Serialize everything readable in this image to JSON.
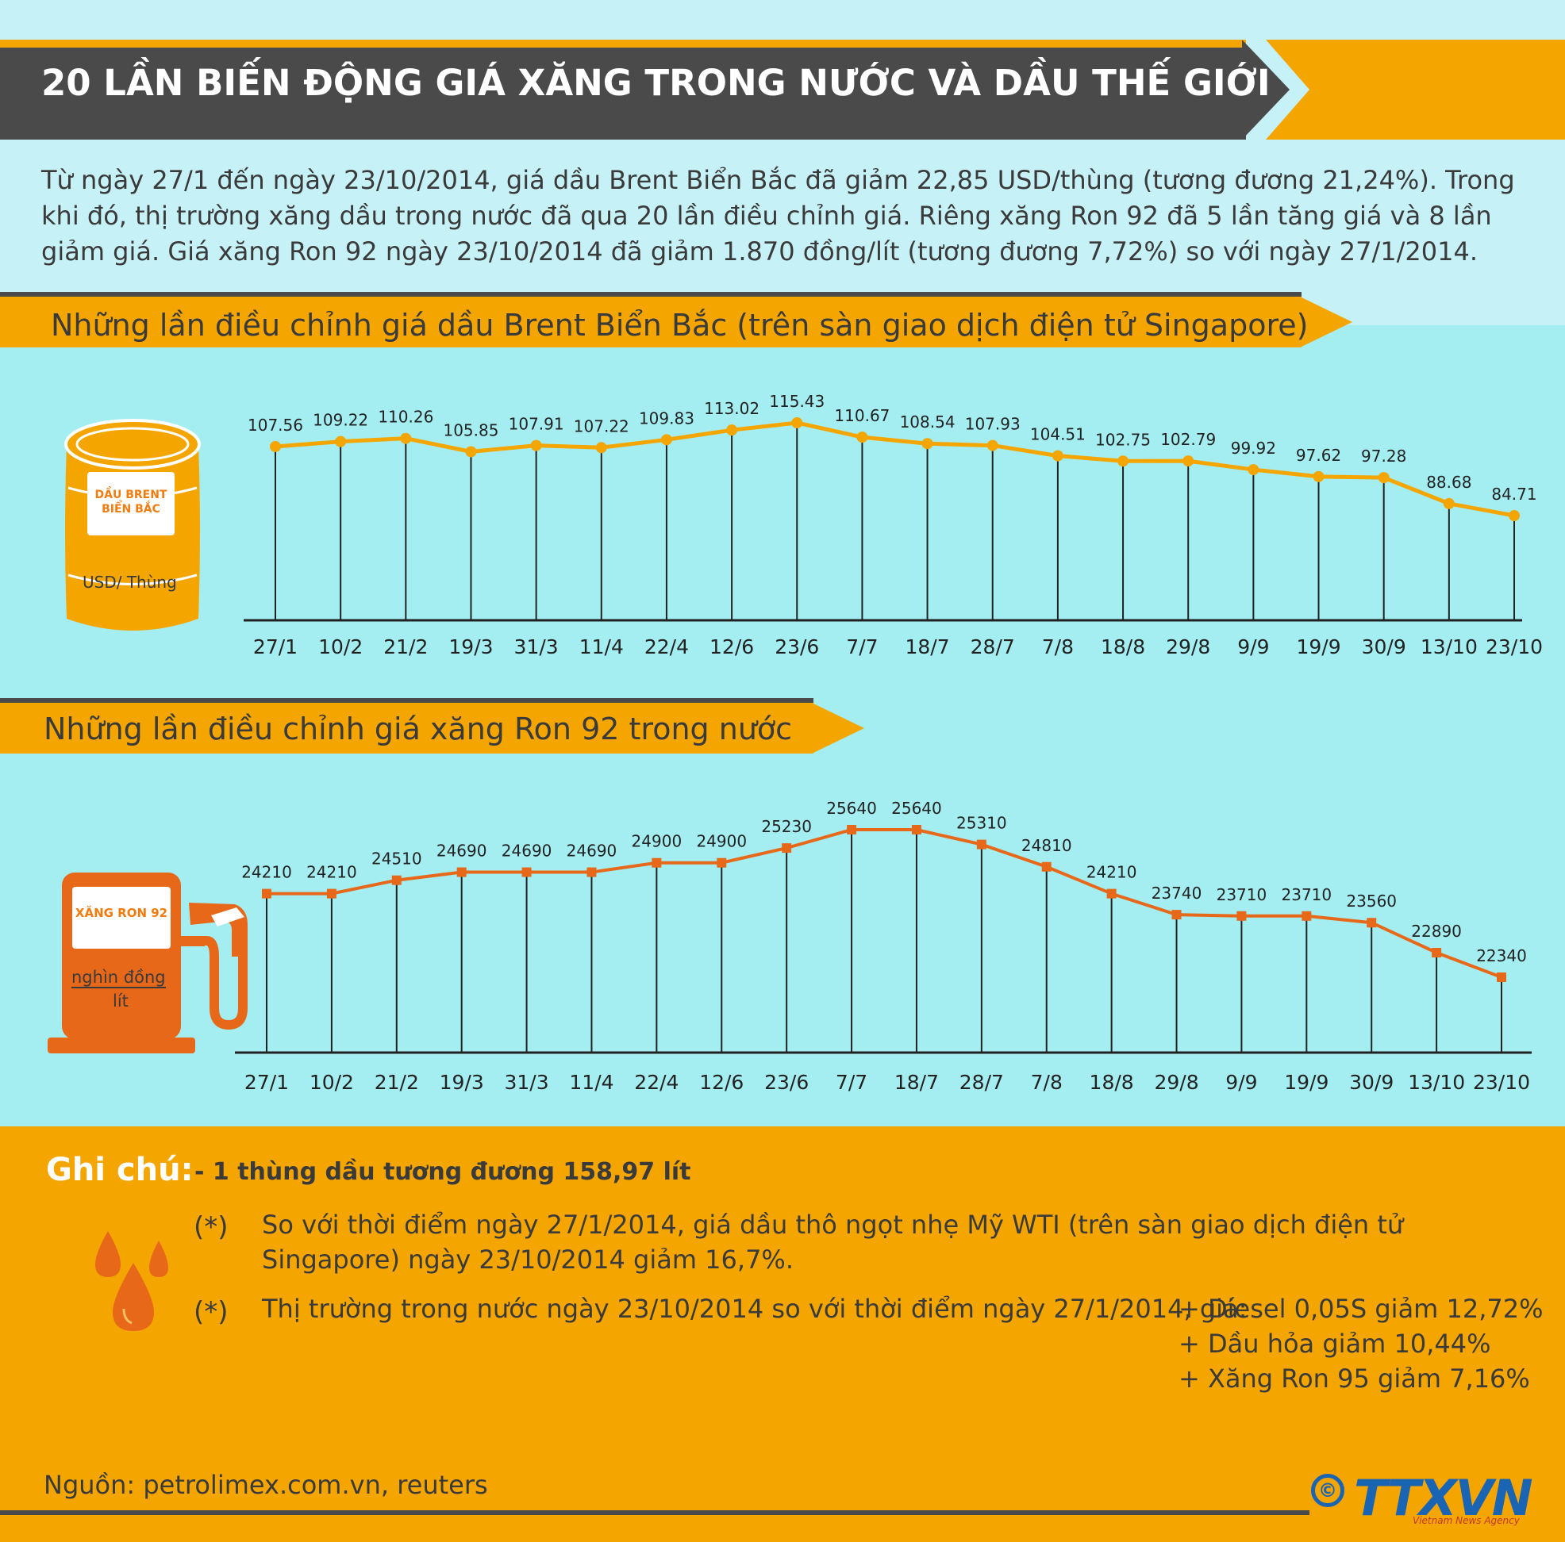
{
  "title": "20 LẦN BIẾN ĐỘNG GIÁ XĂNG TRONG NƯỚC VÀ DẦU THẾ GIỚI",
  "intro": "Từ ngày 27/1 đến ngày 23/10/2014, giá dầu Brent Biển Bắc đã giảm 22,85 USD/thùng (tương đương 21,24%). Trong khi đó, thị trường xăng dầu trong nước đã qua 20 lần điều chỉnh giá. Riêng xăng Ron 92 đã 5 lần tăng giá và 8 lần giảm giá. Giá xăng Ron 92 ngày 23/10/2014 đã giảm 1.870 đồng/lít (tương đương 7,72%) so với ngày 27/1/2014.",
  "section1": {
    "heading": "Những lần điều chỉnh giá dầu Brent Biển Bắc (trên sàn giao dịch điện tử Singapore)",
    "icon_label": "DẦU BRENT BIỂN BẮC",
    "unit": "USD/ Thùng"
  },
  "section2": {
    "heading": "Những lần điều chỉnh giá xăng Ron 92 trong nước",
    "icon_label": "XĂNG RON 92",
    "unit_top": "nghìn đồng",
    "unit_bottom": "lít"
  },
  "chart_data": [
    {
      "type": "line",
      "title": "Những lần điều chỉnh giá dầu Brent Biển Bắc (trên sàn giao dịch điện tử Singapore)",
      "ylabel": "USD/ Thùng",
      "categories": [
        "27/1",
        "10/2",
        "21/2",
        "19/3",
        "31/3",
        "11/4",
        "22/4",
        "12/6",
        "23/6",
        "7/7",
        "18/7",
        "28/7",
        "7/8",
        "18/8",
        "29/8",
        "9/9",
        "19/9",
        "30/9",
        "13/10",
        "23/10"
      ],
      "values": [
        107.56,
        109.22,
        110.26,
        105.85,
        107.91,
        107.22,
        109.83,
        113.02,
        115.43,
        110.67,
        108.54,
        107.93,
        104.51,
        102.75,
        102.79,
        99.92,
        97.62,
        97.28,
        88.68,
        84.71
      ],
      "labels": [
        "107.56",
        "109.22",
        "110.26",
        "105.85",
        "107.91",
        "107.22",
        "109.83",
        "113.02",
        "115.43",
        "110.67",
        "108.54",
        "107.93",
        "104.51",
        "102.75",
        "102.79",
        "99.92",
        "97.62",
        "97.28",
        "88.68",
        "84.71"
      ],
      "color": "#f5a500"
    },
    {
      "type": "line",
      "title": "Những lần điều chỉnh giá xăng Ron 92 trong nước",
      "ylabel": "nghìn đồng / lít",
      "categories": [
        "27/1",
        "10/2",
        "21/2",
        "19/3",
        "31/3",
        "11/4",
        "22/4",
        "12/6",
        "23/6",
        "7/7",
        "18/7",
        "28/7",
        "7/8",
        "18/8",
        "29/8",
        "9/9",
        "19/9",
        "30/9",
        "13/10",
        "23/10"
      ],
      "values": [
        24210,
        24210,
        24510,
        24690,
        24690,
        24690,
        24900,
        24900,
        25230,
        25640,
        25640,
        25310,
        24810,
        24210,
        23740,
        23710,
        23710,
        23560,
        22890,
        22340
      ],
      "labels": [
        "24210",
        "24210",
        "24510",
        "24690",
        "24690",
        "24690",
        "24900",
        "24900",
        "25230",
        "25640",
        "25640",
        "25310",
        "24810",
        "24210",
        "23740",
        "23710",
        "23710",
        "23560",
        "22890",
        "22340"
      ],
      "color": "#e8681a"
    }
  ],
  "notes": {
    "heading": "Ghi chú:",
    "sub": "- 1 thùng dầu tương đương 158,97 lít",
    "star": "(*)",
    "note1": "So với thời điểm ngày 27/1/2014, giá dầu thô ngọt nhẹ Mỹ WTI (trên sàn giao dịch điện tử Singapore) ngày 23/10/2014 giảm 16,7%.",
    "note2": "Thị trường trong nước ngày 23/10/2014 so với thời điểm ngày 27/1/2014, giá:",
    "items": [
      "+ Diesel 0,05S giảm 12,72%",
      "+ Dầu hỏa giảm 10,44%",
      "+ Xăng Ron 95 giảm 7,16%"
    ]
  },
  "source": "Nguồn: petrolimex.com.vn, reuters",
  "logo": "TTXVN",
  "logo_copyright": "©",
  "logo_sub": "Vietnam News Agency"
}
